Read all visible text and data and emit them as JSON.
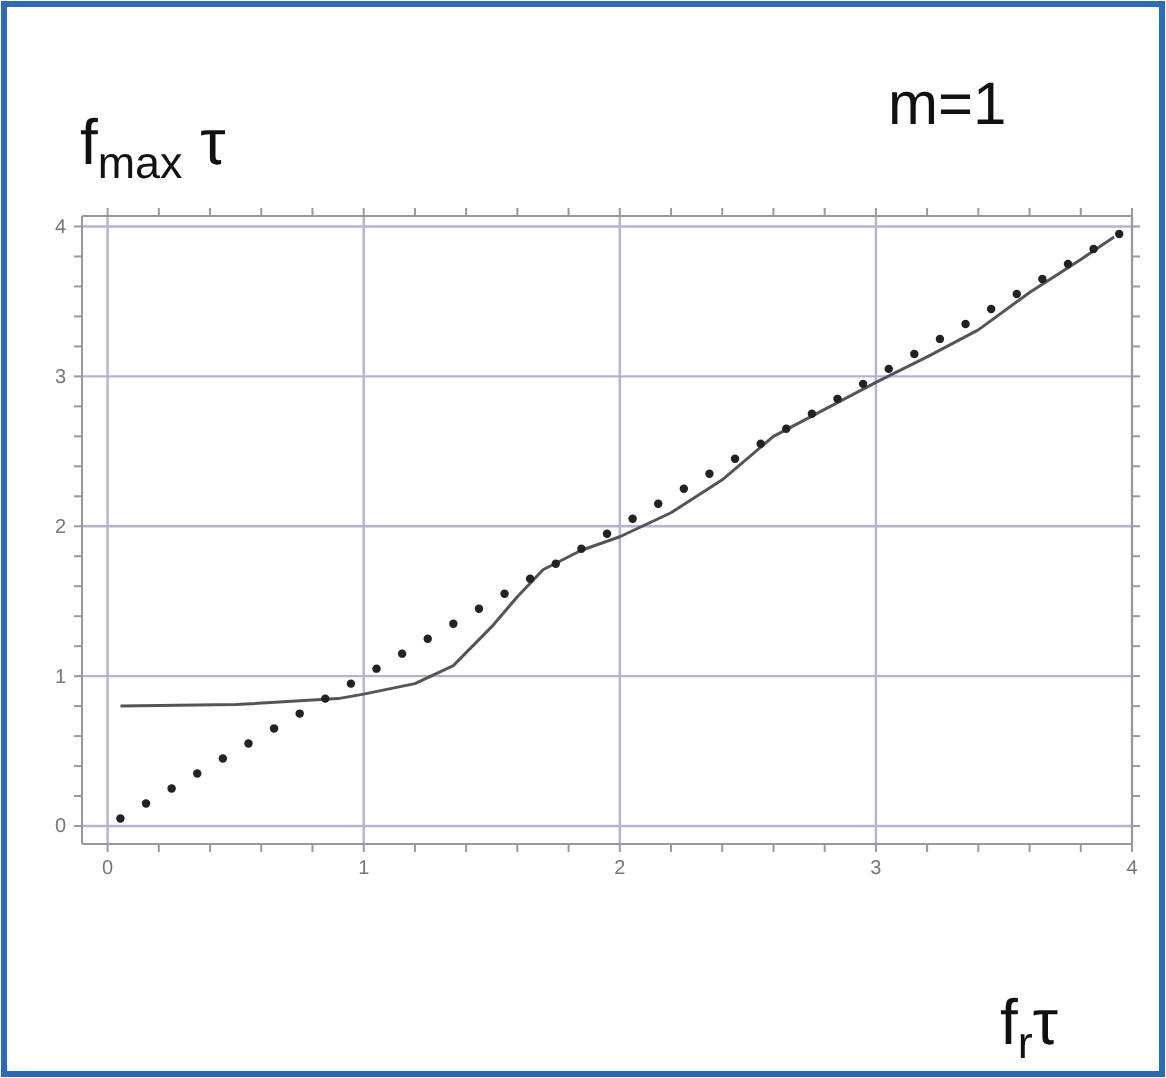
{
  "chart_data": {
    "type": "line",
    "xlabel": "f$_{r}$τ",
    "ylabel": "f$_{max}$ τ",
    "annotations": [
      "m=1"
    ],
    "xlim": [
      -0.1,
      4.0
    ],
    "ylim": [
      -0.12,
      4.07
    ],
    "xticks": [
      0,
      {
        "value": 0.2,
        "label": null
      },
      {
        "value": 0.4,
        "label": null
      },
      {
        "value": 0.6,
        "label": null
      },
      {
        "value": 0.8,
        "label": null
      },
      1,
      {
        "value": 1.2,
        "label": null
      },
      {
        "value": 1.4,
        "label": null
      },
      {
        "value": 1.6,
        "label": null
      },
      {
        "value": 1.8,
        "label": null
      },
      2,
      {
        "value": 2.2,
        "label": null
      },
      {
        "value": 2.4,
        "label": null
      },
      {
        "value": 2.6,
        "label": null
      },
      {
        "value": 2.8,
        "label": null
      },
      3,
      {
        "value": 3.2,
        "label": null
      },
      {
        "value": 3.4,
        "label": null
      },
      {
        "value": 3.6,
        "label": null
      },
      {
        "value": 3.8,
        "label": null
      },
      4
    ],
    "yticks": [
      0,
      {
        "value": 0.2,
        "label": null
      },
      {
        "value": 0.4,
        "label": null
      },
      {
        "value": 0.6,
        "label": null
      },
      {
        "value": 0.8,
        "label": null
      },
      1,
      {
        "value": 1.2,
        "label": null
      },
      {
        "value": 1.4,
        "label": null
      },
      {
        "value": 1.6,
        "label": null
      },
      {
        "value": 1.8,
        "label": null
      },
      2,
      {
        "value": 2.2,
        "label": null
      },
      {
        "value": 2.4,
        "label": null
      },
      {
        "value": 2.6,
        "label": null
      },
      {
        "value": 2.8,
        "label": null
      },
      3,
      {
        "value": 3.2,
        "label": null
      },
      {
        "value": 3.4,
        "label": null
      },
      {
        "value": 3.6,
        "label": null
      },
      {
        "value": 3.8,
        "label": null
      },
      4
    ],
    "grid": true,
    "series": [
      {
        "color": "#555555",
        "marker": "none",
        "line_style": "solid",
        "x": [
          0.05,
          0.5,
          0.9,
          1.0,
          1.2,
          1.35,
          1.5,
          1.6,
          1.7,
          1.85,
          2.0,
          2.2,
          2.4,
          2.6,
          2.8,
          3.0,
          3.2,
          3.4,
          3.6,
          3.8,
          3.93
        ],
        "values": [
          0.8,
          0.81,
          0.85,
          0.88,
          0.95,
          1.07,
          1.33,
          1.53,
          1.71,
          1.84,
          1.93,
          2.09,
          2.31,
          2.6,
          2.78,
          2.96,
          3.13,
          3.31,
          3.56,
          3.78,
          3.93
        ]
      },
      {
        "type": "scatter",
        "color": "#222222",
        "marker": "circle",
        "x": [
          0.05,
          0.15,
          0.25,
          0.35,
          0.45,
          0.55,
          0.65,
          0.75,
          0.85,
          0.95,
          1.05,
          1.15,
          1.25,
          1.35,
          1.45,
          1.55,
          1.65,
          1.75,
          1.85,
          1.95,
          2.05,
          2.15,
          2.25,
          2.35,
          2.45,
          2.55,
          2.65,
          2.75,
          2.85,
          2.95,
          3.05,
          3.15,
          3.25,
          3.35,
          3.45,
          3.55,
          3.65,
          3.75,
          3.85,
          3.95
        ],
        "values": [
          0.05,
          0.15,
          0.25,
          0.35,
          0.45,
          0.55,
          0.65,
          0.75,
          0.85,
          0.95,
          1.05,
          1.15,
          1.25,
          1.35,
          1.45,
          1.55,
          1.65,
          1.75,
          1.85,
          1.95,
          2.05,
          2.15,
          2.25,
          2.35,
          2.45,
          2.55,
          2.65,
          2.75,
          2.85,
          2.95,
          3.05,
          3.15,
          3.25,
          3.35,
          3.45,
          3.55,
          3.65,
          3.75,
          3.85,
          3.95
        ]
      }
    ]
  }
}
